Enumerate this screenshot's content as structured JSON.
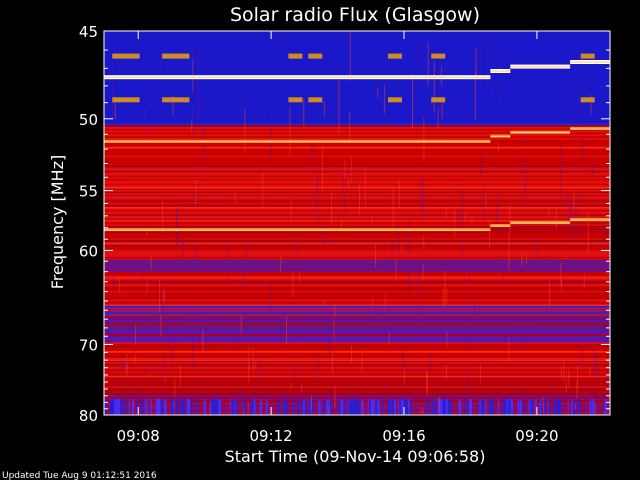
{
  "chart_data": {
    "type": "heatmap",
    "title": "Solar radio Flux (Glasgow)",
    "xlabel": "Start Time (09-Nov-14 09:06:58)",
    "ylabel": "Frequency [MHz]",
    "x_ticks": [
      "09:08",
      "09:12",
      "09:16",
      "09:20"
    ],
    "x_tick_minutes": [
      8,
      12,
      16,
      20
    ],
    "xlim_minutes": [
      6.97,
      22.2
    ],
    "y_ticks": [
      45,
      50,
      55,
      60,
      70,
      80
    ],
    "ylim": [
      45,
      80
    ],
    "y_scale": "reciprocal",
    "colors": {
      "background": "#000000",
      "low": "#1010c8",
      "mid": "#d00000",
      "high": "#ffd27a",
      "peak": "#ffffff"
    },
    "bright_lines_mhz": [
      47.5,
      51.5,
      58.2
    ],
    "step_times_minutes": [
      18.6,
      19.2,
      21.0
    ]
  },
  "footer": {
    "updated": "Updated Tue Aug  9 01:12:51 2016"
  }
}
